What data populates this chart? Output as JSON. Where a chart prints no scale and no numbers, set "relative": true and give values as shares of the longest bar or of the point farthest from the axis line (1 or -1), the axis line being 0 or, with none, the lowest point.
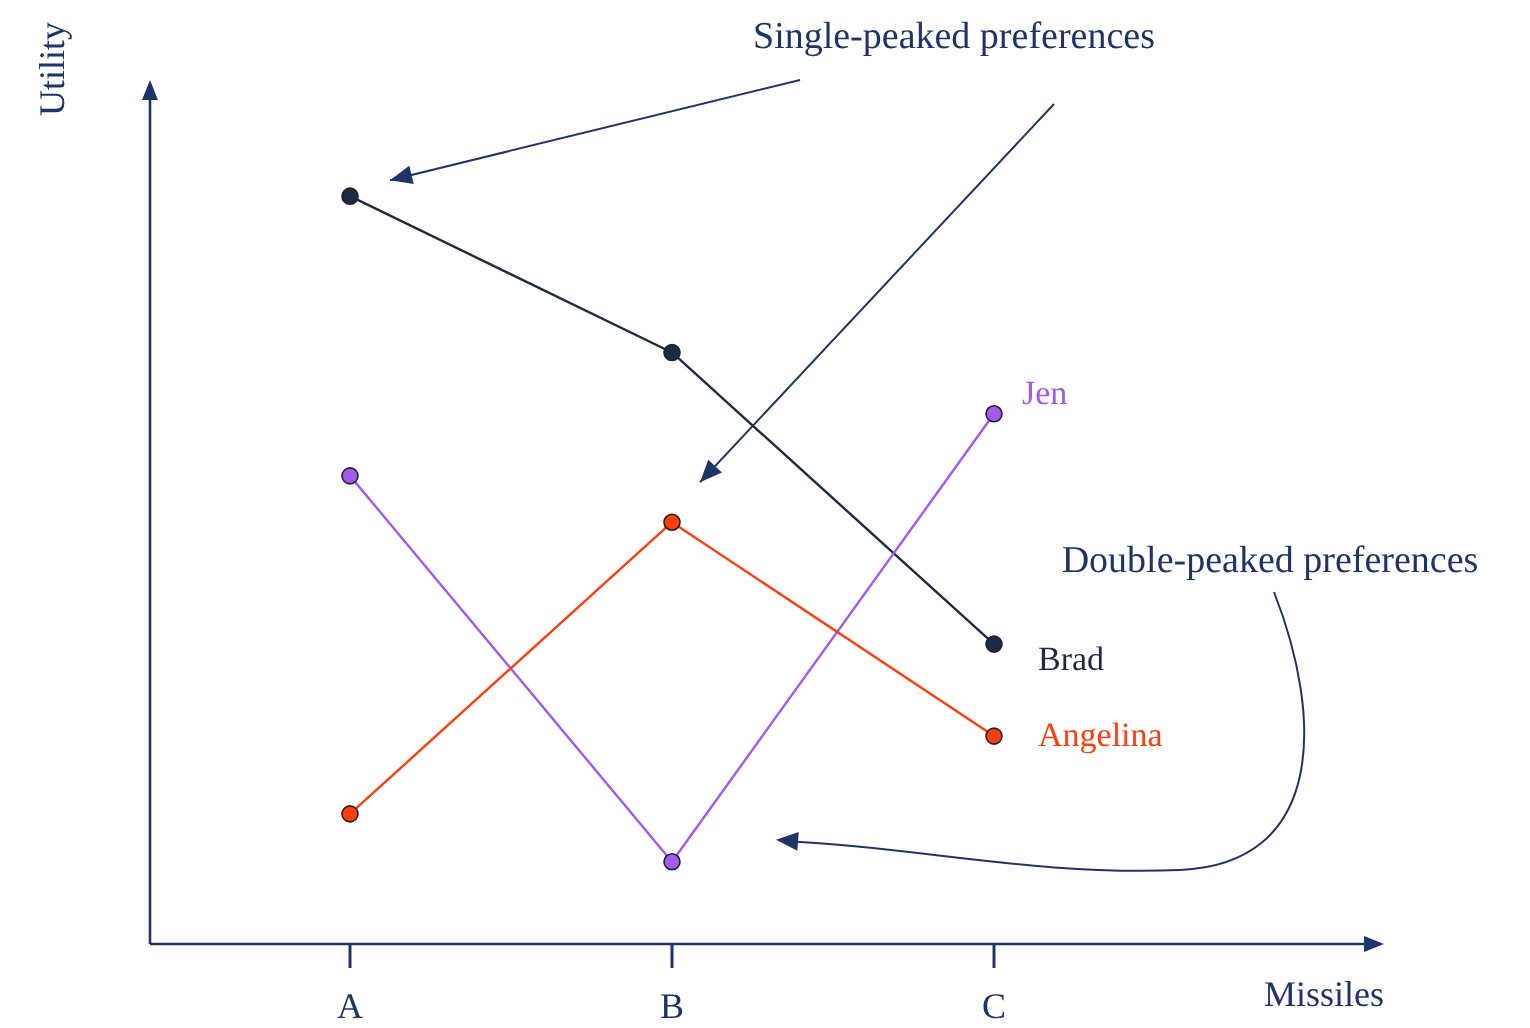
{
  "chart_data": {
    "type": "line",
    "relative": true,
    "xlabel": "Missiles",
    "ylabel": "Utility",
    "categories": [
      "A",
      "B",
      "C"
    ],
    "marker": "circle",
    "series": [
      {
        "name": "Brad",
        "color": "#1b2a45",
        "values": [
          1,
          0.791,
          0.401
        ]
      },
      {
        "name": "Jen",
        "color": "#a259f0",
        "values": [
          0.626,
          0.11,
          0.709
        ]
      },
      {
        "name": "Angelina",
        "color": "#ff3d0d",
        "values": [
          0.174,
          0.564,
          0.278
        ]
      }
    ],
    "annotations": [
      "Single-peaked preferences",
      "Double-peaked preferences"
    ]
  }
}
